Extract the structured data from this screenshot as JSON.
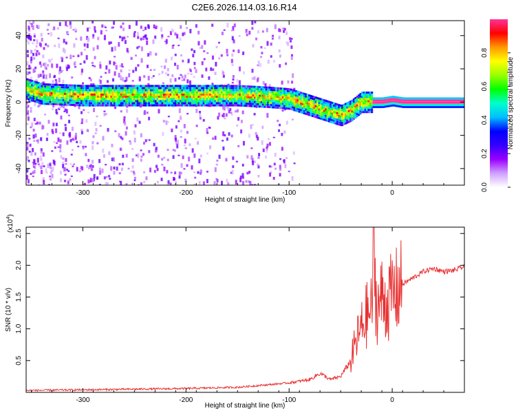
{
  "title": "C2E6.2026.114.03.16.R14",
  "chart_data": [
    {
      "type": "heatmap",
      "xlabel": "Height of straight line (km)",
      "ylabel": "Frequency (Hz)",
      "xlim": [
        -355,
        70
      ],
      "ylim": [
        -50,
        49
      ],
      "xticks": [
        -300,
        -200,
        -100,
        0
      ],
      "yticks": [
        -40,
        -20,
        0,
        20,
        40
      ],
      "colorbar": {
        "label": "Normalized spectral amplitude",
        "range": [
          0,
          1
        ],
        "ticks": [
          "0.0",
          "0.2",
          "0.4",
          "0.6",
          "0.8"
        ],
        "colors": [
          "#ffffff",
          "#d0a0ff",
          "#9900ff",
          "#3300ff",
          "#0000ff",
          "#00bfff",
          "#00ffcc",
          "#00ff00",
          "#99ff00",
          "#ffff00",
          "#ff9900",
          "#ff0000",
          "#ff3399"
        ]
      },
      "ridge": {
        "description_points_x": [
          -355,
          -340,
          -300,
          -250,
          -200,
          -150,
          -120,
          -100,
          -80,
          -60,
          -50,
          -40,
          -30,
          -20,
          -10,
          0,
          10,
          70
        ],
        "frequency_y": [
          8,
          5,
          4,
          4,
          4,
          4,
          3,
          2,
          -2,
          -6,
          -8,
          -5,
          0,
          0,
          0,
          1,
          0,
          0
        ]
      }
    },
    {
      "type": "line",
      "xlabel": "Height of straight line (km)",
      "ylabel": "SNR (10 * v/v)",
      "exponent_label": "(x10",
      "exponent_power": "4",
      "xlim": [
        -355,
        70
      ],
      "ylim": [
        0,
        2.6
      ],
      "xticks": [
        -300,
        -200,
        -100,
        0
      ],
      "yticks": [
        "0.5",
        "1.0",
        "1.5",
        "2.0",
        "2.5"
      ],
      "ytick_values": [
        0.5,
        1.0,
        1.5,
        2.0,
        2.5
      ],
      "series": [
        {
          "color": "#e83030",
          "x": [
            -355,
            -300,
            -250,
            -200,
            -150,
            -120,
            -100,
            -80,
            -70,
            -60,
            -50,
            -40,
            -35,
            -30,
            -25,
            -20,
            -18,
            -15,
            -10,
            -5,
            0,
            5,
            10,
            20,
            30,
            40,
            50,
            60,
            70
          ],
          "y": [
            0.03,
            0.04,
            0.05,
            0.06,
            0.08,
            0.12,
            0.15,
            0.2,
            0.3,
            0.2,
            0.25,
            0.5,
            0.8,
            1.0,
            1.2,
            1.3,
            2.2,
            1.3,
            1.5,
            1.4,
            1.55,
            1.6,
            1.7,
            1.8,
            1.9,
            1.95,
            1.9,
            1.92,
            1.98
          ]
        }
      ]
    }
  ]
}
